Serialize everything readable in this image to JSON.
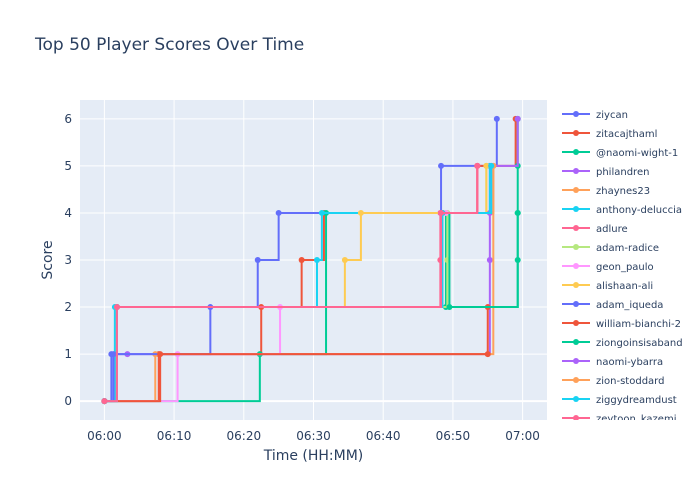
{
  "chart_data": {
    "type": "line",
    "line_shape": "step",
    "title": "Top 50 Player Scores Over Time",
    "xlabel": "Time (HH:MM)",
    "ylabel": "Score",
    "x_tick_labels": [
      "06:00",
      "06:10",
      "06:20",
      "06:30",
      "06:40",
      "06:50",
      "07:00"
    ],
    "x_ticks_minutes": [
      0,
      10,
      20,
      30,
      40,
      50,
      60
    ],
    "xlim_minutes": [
      -3.5,
      63.5
    ],
    "y_ticks": [
      0,
      1,
      2,
      3,
      4,
      5,
      6
    ],
    "ylim": [
      -0.4,
      6.4
    ],
    "grid": true,
    "legend_position": "right",
    "series": [
      {
        "name": "ziycan",
        "color": "#636efa",
        "points": [
          [
            0,
            0
          ],
          [
            1,
            1
          ],
          [
            1.8,
            2
          ],
          [
            22,
            3
          ],
          [
            25,
            4
          ],
          [
            48.3,
            5
          ],
          [
            56.3,
            6
          ]
        ]
      },
      {
        "name": "zitacajthaml",
        "color": "#ef553b",
        "points": [
          [
            0,
            0
          ],
          [
            7.8,
            1
          ],
          [
            22.5,
            2
          ],
          [
            28.3,
            3
          ],
          [
            31.5,
            4
          ],
          [
            53.5,
            5
          ],
          [
            59,
            6
          ]
        ]
      },
      {
        "name": "@naomi-wight-1",
        "color": "#00cc96",
        "points": [
          [
            0,
            0
          ],
          [
            22.3,
            1
          ],
          [
            31.8,
            4
          ],
          [
            49,
            2
          ],
          [
            59.3,
            3
          ],
          [
            59.3,
            4
          ],
          [
            59.3,
            5
          ],
          [
            59.3,
            6
          ]
        ]
      },
      {
        "name": "philandren",
        "color": "#ab63fa",
        "points": [
          [
            0,
            0
          ],
          [
            1.5,
            1
          ],
          [
            3.3,
            1
          ],
          [
            55.3,
            3
          ],
          [
            55.3,
            4
          ],
          [
            55.3,
            5
          ],
          [
            59.3,
            6
          ]
        ]
      },
      {
        "name": "zhaynes23",
        "color": "#ffa15a",
        "points": [
          [
            0,
            0
          ],
          [
            7.3,
            1
          ],
          [
            55.8,
            5
          ]
        ]
      },
      {
        "name": "anthony-deluccia",
        "color": "#19d3f3",
        "points": [
          [
            0,
            0
          ],
          [
            1.5,
            2
          ],
          [
            30.5,
            3
          ],
          [
            31.2,
            4
          ],
          [
            55.3,
            5
          ]
        ]
      },
      {
        "name": "adlure",
        "color": "#ff6692",
        "points": [
          [
            0,
            0
          ],
          [
            1.8,
            2
          ],
          [
            48.2,
            3
          ],
          [
            48.2,
            4
          ],
          [
            53.5,
            5
          ]
        ]
      },
      {
        "name": "adam-radice",
        "color": "#b6e880",
        "points": [
          [
            0,
            0
          ],
          [
            1.8,
            2
          ],
          [
            49.2,
            3
          ],
          [
            49.2,
            4
          ],
          [
            54.8,
            5
          ]
        ]
      },
      {
        "name": "geon_paulo",
        "color": "#ff97ff",
        "points": [
          [
            0,
            0
          ],
          [
            10.5,
            1
          ],
          [
            25.2,
            2
          ],
          [
            48.5,
            4
          ],
          [
            49,
            4
          ]
        ]
      },
      {
        "name": "alishaan-ali",
        "color": "#fecb52",
        "points": [
          [
            0,
            0
          ],
          [
            1.8,
            2
          ],
          [
            34.5,
            3
          ],
          [
            36.8,
            4
          ],
          [
            54.8,
            5
          ]
        ]
      },
      {
        "name": "adam_iqueda",
        "color": "#636efa",
        "points": [
          [
            0,
            0
          ],
          [
            1.3,
            1
          ],
          [
            15.2,
            2
          ],
          [
            48.5,
            4
          ]
        ]
      },
      {
        "name": "william-bianchi-2",
        "color": "#ef553b",
        "points": [
          [
            0,
            0
          ],
          [
            8,
            1
          ],
          [
            55,
            1
          ],
          [
            55,
            2
          ]
        ]
      },
      {
        "name": "ziongoinsisaband",
        "color": "#00cc96",
        "points": [
          [
            0,
            0
          ],
          [
            1.8,
            2
          ],
          [
            48.5,
            4
          ],
          [
            49.5,
            2
          ],
          [
            59.3,
            4
          ]
        ]
      },
      {
        "name": "naomi-ybarra",
        "color": "#ab63fa",
        "points": [
          [
            0,
            0
          ],
          [
            1.8,
            2
          ],
          [
            48.3,
            4
          ],
          [
            55.5,
            5
          ]
        ]
      },
      {
        "name": "zion-stoddard",
        "color": "#ffa15a",
        "points": [
          [
            0,
            0
          ],
          [
            1.8,
            2
          ],
          [
            48.5,
            4
          ],
          [
            55.8,
            5
          ]
        ]
      },
      {
        "name": "ziggydreamdust",
        "color": "#19d3f3",
        "points": [
          [
            0,
            0
          ],
          [
            1.8,
            2
          ],
          [
            48.5,
            4
          ],
          [
            55.5,
            5
          ]
        ]
      },
      {
        "name": "zeytoon_kazemi",
        "color": "#ff6692",
        "points": [
          [
            0,
            0
          ],
          [
            1.8,
            2
          ],
          [
            48.3,
            4
          ],
          [
            53.5,
            5
          ]
        ]
      }
    ]
  }
}
